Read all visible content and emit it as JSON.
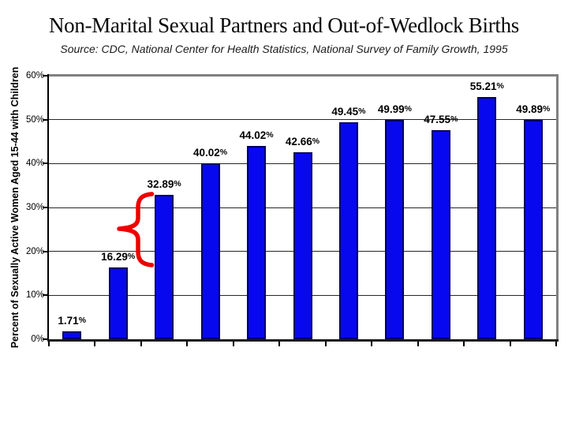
{
  "chart_data": {
    "type": "bar",
    "title": "Non-Marital Sexual Partners and Out-of-Wedlock Births",
    "subtitle": "Source: CDC, National Center for Health Statistics, National Survey of Family Growth, 1995",
    "ylabel": "Percent of Sexually Active Women Aged 15-44 with Children",
    "xlabel": "",
    "categories": [
      "",
      "",
      "",
      "",
      "",
      "",
      "",
      "",
      "",
      "",
      ""
    ],
    "values": [
      1.71,
      16.29,
      32.89,
      40.02,
      44.02,
      42.66,
      49.45,
      49.99,
      47.55,
      55.21,
      49.89
    ],
    "bar_labels": [
      "1.71%",
      "16.29%",
      "32.89%",
      "40.02%",
      "44.02%",
      "42.66%",
      "49.45%",
      "49.99%",
      "47.55%",
      "55.21%",
      "49.89%"
    ],
    "y_ticks": [
      "0%",
      "10%",
      "20%",
      "30%",
      "40%",
      "50%",
      "60%"
    ],
    "ylim": [
      0,
      60
    ],
    "grid": true,
    "legend": "none",
    "colors": {
      "bar_fill": "#0808ee",
      "bar_border": "#000060",
      "gridline": "#262626",
      "plot_border_gray": "#808080",
      "axis_black": "#000000",
      "annotation_red": "#ee0000"
    },
    "annotation": {
      "type": "curly-brace",
      "color": "#ee0000",
      "description": "red brace spanning gap between 16.29% bar top and 32.89% bar top"
    }
  }
}
